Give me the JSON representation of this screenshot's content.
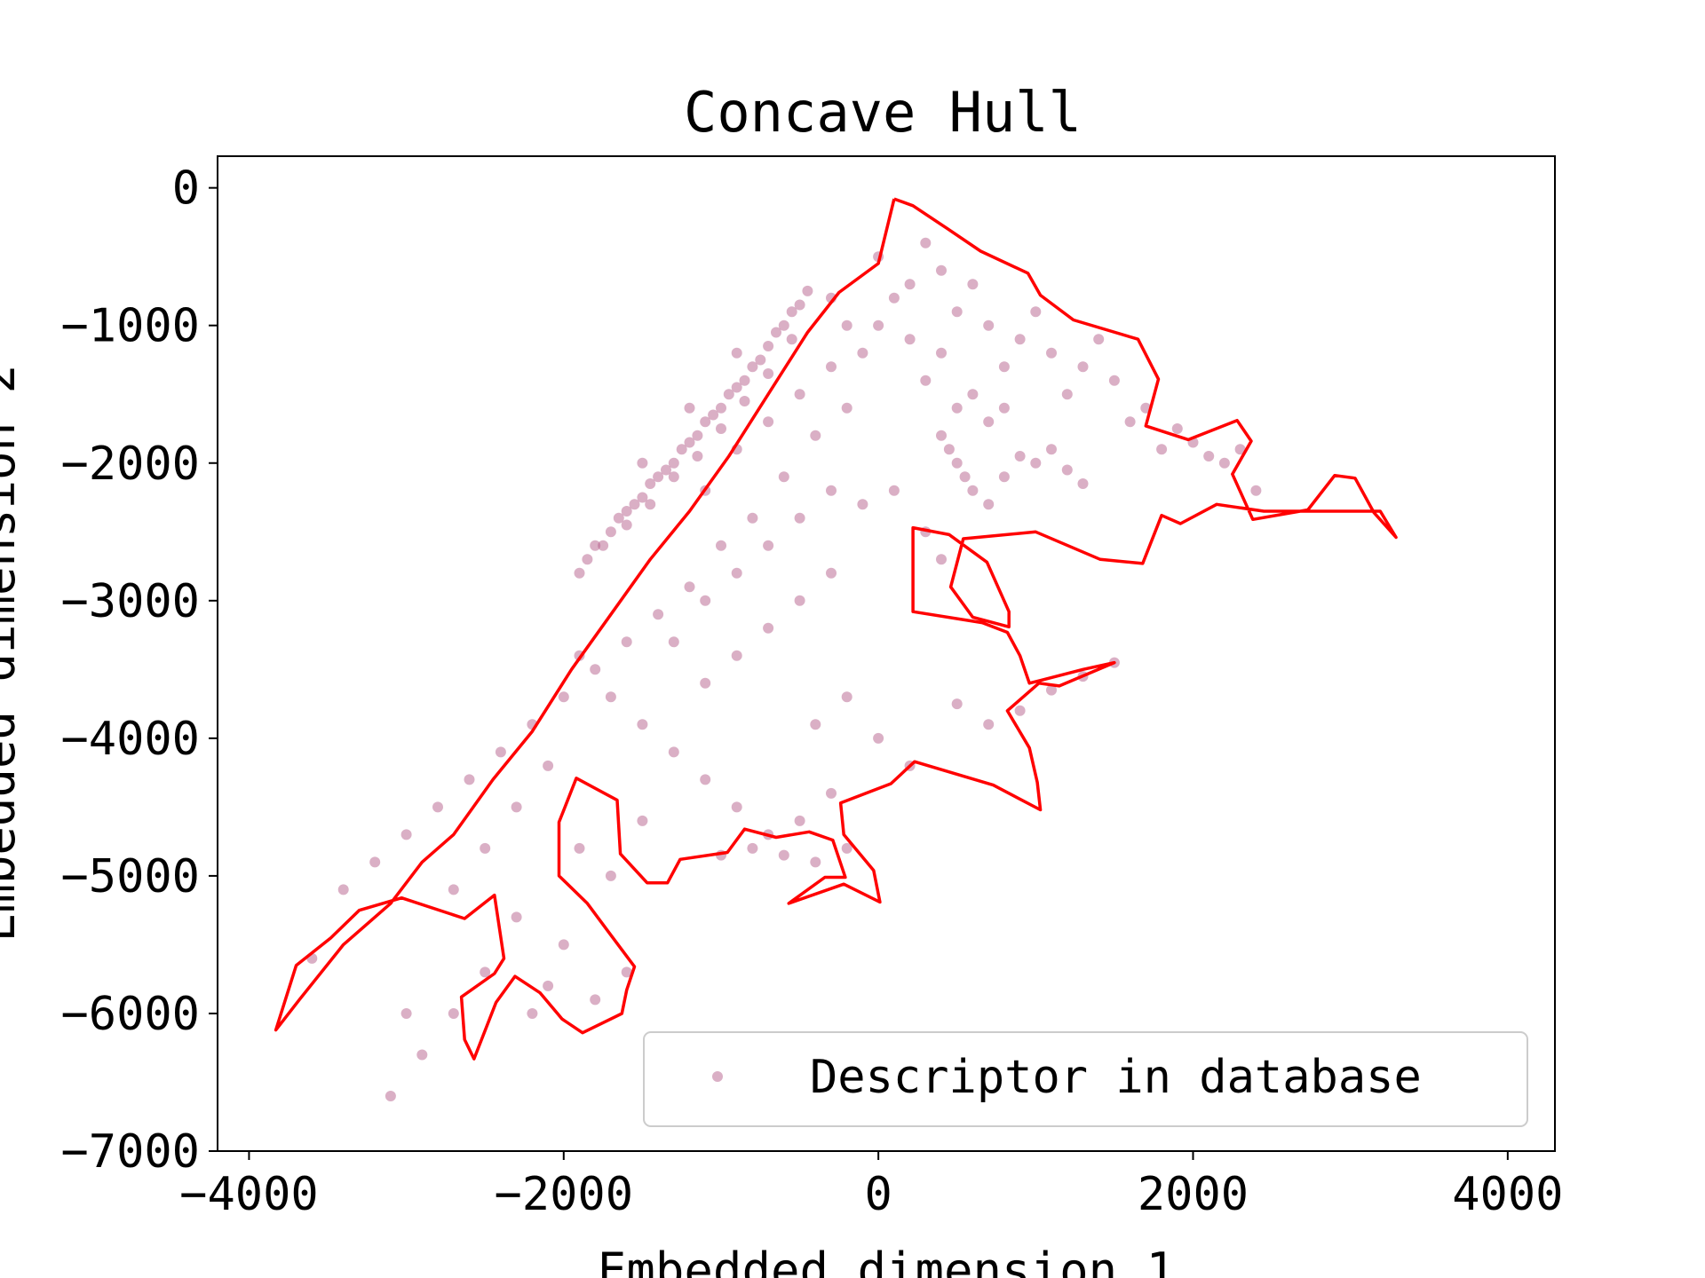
{
  "chart_data": {
    "type": "scatter",
    "title": "Concave Hull",
    "xlabel": "Embedded dimension 1",
    "ylabel": "Embedded dimension 2",
    "xlim": [
      -4200,
      4300
    ],
    "ylim": [
      -7000,
      230
    ],
    "xticks": [
      {
        "value": -4000,
        "label": "−4000"
      },
      {
        "value": -2000,
        "label": "−2000"
      },
      {
        "value": 0,
        "label": "0"
      },
      {
        "value": 2000,
        "label": "2000"
      },
      {
        "value": 4000,
        "label": "4000"
      }
    ],
    "yticks": [
      {
        "value": 0,
        "label": "0"
      },
      {
        "value": -1000,
        "label": "−1000"
      },
      {
        "value": -2000,
        "label": "−2000"
      },
      {
        "value": -3000,
        "label": "−3000"
      },
      {
        "value": -4000,
        "label": "−4000"
      },
      {
        "value": -5000,
        "label": "−5000"
      },
      {
        "value": -6000,
        "label": "−6000"
      },
      {
        "value": -7000,
        "label": "−7000"
      }
    ],
    "grid": false,
    "legend_position": "lower-right",
    "colors": {
      "points": "#b5608b",
      "hull": "#ff0000"
    },
    "series": [
      {
        "name": "Descriptor in database",
        "kind": "points",
        "points": [
          [
            -1900,
            -2800
          ],
          [
            -1850,
            -2700
          ],
          [
            -1800,
            -2600
          ],
          [
            -1700,
            -2500
          ],
          [
            -1650,
            -2400
          ],
          [
            -1600,
            -2350
          ],
          [
            -1550,
            -2300
          ],
          [
            -1500,
            -2250
          ],
          [
            -1450,
            -2150
          ],
          [
            -1400,
            -2100
          ],
          [
            -1350,
            -2050
          ],
          [
            -1300,
            -2000
          ],
          [
            -1250,
            -1900
          ],
          [
            -1200,
            -1850
          ],
          [
            -1150,
            -1800
          ],
          [
            -1100,
            -1700
          ],
          [
            -1050,
            -1650
          ],
          [
            -1000,
            -1600
          ],
          [
            -950,
            -1500
          ],
          [
            -900,
            -1450
          ],
          [
            -850,
            -1400
          ],
          [
            -800,
            -1300
          ],
          [
            -750,
            -1250
          ],
          [
            -700,
            -1150
          ],
          [
            -650,
            -1050
          ],
          [
            -600,
            -1000
          ],
          [
            -550,
            -900
          ],
          [
            -500,
            -850
          ],
          [
            -450,
            -750
          ],
          [
            -1750,
            -2600
          ],
          [
            -1600,
            -2450
          ],
          [
            -1450,
            -2300
          ],
          [
            -1300,
            -2100
          ],
          [
            -1150,
            -1950
          ],
          [
            -1000,
            -1750
          ],
          [
            -850,
            -1550
          ],
          [
            -700,
            -1350
          ],
          [
            -550,
            -1100
          ],
          [
            -1500,
            -2000
          ],
          [
            -1200,
            -1600
          ],
          [
            -900,
            -1200
          ],
          [
            -1100,
            -2200
          ],
          [
            -900,
            -1900
          ],
          [
            -700,
            -1700
          ],
          [
            -500,
            -1500
          ],
          [
            -300,
            -1300
          ],
          [
            -600,
            -2100
          ],
          [
            -400,
            -1800
          ],
          [
            -200,
            -1600
          ],
          [
            -800,
            -2400
          ],
          [
            -1000,
            -2600
          ],
          [
            -1200,
            -2900
          ],
          [
            -1400,
            -3100
          ],
          [
            -1600,
            -3300
          ],
          [
            -1800,
            -3500
          ],
          [
            -2000,
            -3700
          ],
          [
            -2200,
            -3900
          ],
          [
            -2400,
            -4100
          ],
          [
            -2600,
            -4300
          ],
          [
            -2800,
            -4500
          ],
          [
            -3000,
            -4700
          ],
          [
            -3200,
            -4900
          ],
          [
            -3400,
            -5100
          ],
          [
            -3600,
            -5600
          ],
          [
            -1900,
            -3400
          ],
          [
            -1700,
            -3700
          ],
          [
            -1500,
            -3900
          ],
          [
            -1300,
            -4100
          ],
          [
            -1100,
            -4300
          ],
          [
            -900,
            -4500
          ],
          [
            -700,
            -4700
          ],
          [
            -500,
            -4600
          ],
          [
            -300,
            -4400
          ],
          [
            -2100,
            -4200
          ],
          [
            -2300,
            -4500
          ],
          [
            -2500,
            -4800
          ],
          [
            -2700,
            -5100
          ],
          [
            -2300,
            -5300
          ],
          [
            -2500,
            -5700
          ],
          [
            -2700,
            -6000
          ],
          [
            -1900,
            -4800
          ],
          [
            -1700,
            -5000
          ],
          [
            -1500,
            -4600
          ],
          [
            -1100,
            -3600
          ],
          [
            -900,
            -3400
          ],
          [
            -700,
            -3200
          ],
          [
            -500,
            -3000
          ],
          [
            -300,
            -2800
          ],
          [
            -1300,
            -3300
          ],
          [
            -1100,
            -3000
          ],
          [
            -900,
            -2800
          ],
          [
            -700,
            -2600
          ],
          [
            -500,
            -2400
          ],
          [
            -300,
            -2200
          ],
          [
            -100,
            -2300
          ],
          [
            100,
            -2200
          ],
          [
            -200,
            -3700
          ],
          [
            0,
            -4000
          ],
          [
            200,
            -4200
          ],
          [
            -400,
            -3900
          ],
          [
            0,
            -500
          ],
          [
            100,
            -800
          ],
          [
            200,
            -1100
          ],
          [
            300,
            -1400
          ],
          [
            400,
            -1200
          ],
          [
            500,
            -900
          ],
          [
            600,
            -700
          ],
          [
            700,
            -1000
          ],
          [
            800,
            -1300
          ],
          [
            900,
            -1100
          ],
          [
            1000,
            -900
          ],
          [
            1100,
            -1200
          ],
          [
            1200,
            -1500
          ],
          [
            1300,
            -1300
          ],
          [
            1400,
            -1100
          ],
          [
            1500,
            -1400
          ],
          [
            1600,
            -1700
          ],
          [
            1700,
            -1600
          ],
          [
            1800,
            -1900
          ],
          [
            1900,
            -1750
          ],
          [
            2000,
            -1850
          ],
          [
            2100,
            -1950
          ],
          [
            2200,
            -2000
          ],
          [
            2300,
            -1900
          ],
          [
            2400,
            -2200
          ],
          [
            400,
            -1800
          ],
          [
            450,
            -1900
          ],
          [
            500,
            -2000
          ],
          [
            550,
            -2100
          ],
          [
            600,
            -2200
          ],
          [
            700,
            -2300
          ],
          [
            800,
            -2100
          ],
          [
            900,
            -1950
          ],
          [
            1000,
            -2000
          ],
          [
            1100,
            -1900
          ],
          [
            1200,
            -2050
          ],
          [
            1300,
            -2150
          ],
          [
            300,
            -400
          ],
          [
            400,
            -600
          ],
          [
            200,
            -700
          ],
          [
            0,
            -1000
          ],
          [
            -100,
            -1200
          ],
          [
            -200,
            -1000
          ],
          [
            -300,
            -800
          ],
          [
            500,
            -1600
          ],
          [
            600,
            -1500
          ],
          [
            700,
            -1700
          ],
          [
            800,
            -1600
          ],
          [
            300,
            -2500
          ],
          [
            400,
            -2700
          ],
          [
            1500,
            -3450
          ],
          [
            1300,
            -3550
          ],
          [
            1100,
            -3650
          ],
          [
            900,
            -3800
          ],
          [
            700,
            -3900
          ],
          [
            500,
            -3750
          ],
          [
            -200,
            -4800
          ],
          [
            -400,
            -4900
          ],
          [
            -600,
            -4850
          ],
          [
            -800,
            -4800
          ],
          [
            -1000,
            -4850
          ],
          [
            -2000,
            -5500
          ],
          [
            -2100,
            -5800
          ],
          [
            -2200,
            -6000
          ],
          [
            -1800,
            -5900
          ],
          [
            -1600,
            -5700
          ],
          [
            -3000,
            -6000
          ],
          [
            -2900,
            -6300
          ],
          [
            -3100,
            -6600
          ]
        ]
      },
      {
        "name": "",
        "kind": "hull",
        "points": [
          [
            100,
            -80
          ],
          [
            220,
            -130
          ],
          [
            430,
            -290
          ],
          [
            650,
            -460
          ],
          [
            950,
            -620
          ],
          [
            1030,
            -780
          ],
          [
            1240,
            -960
          ],
          [
            1650,
            -1100
          ],
          [
            1780,
            -1390
          ],
          [
            1700,
            -1730
          ],
          [
            1970,
            -1830
          ],
          [
            2280,
            -1690
          ],
          [
            2370,
            -1840
          ],
          [
            2250,
            -2080
          ],
          [
            2380,
            -2410
          ],
          [
            2730,
            -2340
          ],
          [
            2900,
            -2090
          ],
          [
            3030,
            -2110
          ],
          [
            3150,
            -2360
          ],
          [
            3290,
            -2540
          ],
          [
            3190,
            -2350
          ],
          [
            2450,
            -2350
          ],
          [
            2150,
            -2300
          ],
          [
            1920,
            -2440
          ],
          [
            1800,
            -2380
          ],
          [
            1680,
            -2730
          ],
          [
            1410,
            -2700
          ],
          [
            1000,
            -2500
          ],
          [
            540,
            -2550
          ],
          [
            460,
            -2900
          ],
          [
            600,
            -3120
          ],
          [
            830,
            -3190
          ],
          [
            830,
            -3080
          ],
          [
            690,
            -2720
          ],
          [
            450,
            -2520
          ],
          [
            220,
            -2470
          ],
          [
            220,
            -3080
          ],
          [
            660,
            -3160
          ],
          [
            820,
            -3230
          ],
          [
            900,
            -3400
          ],
          [
            960,
            -3600
          ],
          [
            1030,
            -3580
          ],
          [
            1300,
            -3500
          ],
          [
            1500,
            -3450
          ],
          [
            1150,
            -3620
          ],
          [
            1020,
            -3600
          ],
          [
            820,
            -3800
          ],
          [
            960,
            -4070
          ],
          [
            1010,
            -4320
          ],
          [
            1030,
            -4520
          ],
          [
            730,
            -4340
          ],
          [
            230,
            -4170
          ],
          [
            80,
            -4330
          ],
          [
            -240,
            -4470
          ],
          [
            -220,
            -4700
          ],
          [
            -30,
            -4960
          ],
          [
            10,
            -5190
          ],
          [
            -220,
            -5060
          ],
          [
            -570,
            -5200
          ],
          [
            -340,
            -5010
          ],
          [
            -210,
            -5010
          ],
          [
            -290,
            -4740
          ],
          [
            -440,
            -4680
          ],
          [
            -650,
            -4720
          ],
          [
            -850,
            -4660
          ],
          [
            -960,
            -4830
          ],
          [
            -1260,
            -4880
          ],
          [
            -1340,
            -5050
          ],
          [
            -1470,
            -5050
          ],
          [
            -1640,
            -4840
          ],
          [
            -1660,
            -4450
          ],
          [
            -1920,
            -4290
          ],
          [
            -2030,
            -4610
          ],
          [
            -2030,
            -5000
          ],
          [
            -1850,
            -5200
          ],
          [
            -1720,
            -5400
          ],
          [
            -1550,
            -5660
          ],
          [
            -1600,
            -5830
          ],
          [
            -1630,
            -6000
          ],
          [
            -1880,
            -6140
          ],
          [
            -2010,
            -6040
          ],
          [
            -2150,
            -5850
          ],
          [
            -2310,
            -5730
          ],
          [
            -2430,
            -5920
          ],
          [
            -2570,
            -6330
          ],
          [
            -2630,
            -6190
          ],
          [
            -2650,
            -5880
          ],
          [
            -2440,
            -5710
          ],
          [
            -2380,
            -5600
          ],
          [
            -2440,
            -5140
          ],
          [
            -2630,
            -5310
          ],
          [
            -3030,
            -5160
          ],
          [
            -3300,
            -5250
          ],
          [
            -3480,
            -5450
          ],
          [
            -3700,
            -5650
          ],
          [
            -3830,
            -6120
          ],
          [
            -3680,
            -5900
          ],
          [
            -3400,
            -5500
          ],
          [
            -3100,
            -5200
          ],
          [
            -2900,
            -4900
          ],
          [
            -2700,
            -4700
          ],
          [
            -2450,
            -4300
          ],
          [
            -2200,
            -3950
          ],
          [
            -1950,
            -3500
          ],
          [
            -1700,
            -3100
          ],
          [
            -1450,
            -2700
          ],
          [
            -1200,
            -2350
          ],
          [
            -950,
            -1950
          ],
          [
            -700,
            -1500
          ],
          [
            -450,
            -1050
          ],
          [
            -250,
            -760
          ],
          [
            0,
            -550
          ],
          [
            100,
            -80
          ]
        ]
      }
    ]
  }
}
